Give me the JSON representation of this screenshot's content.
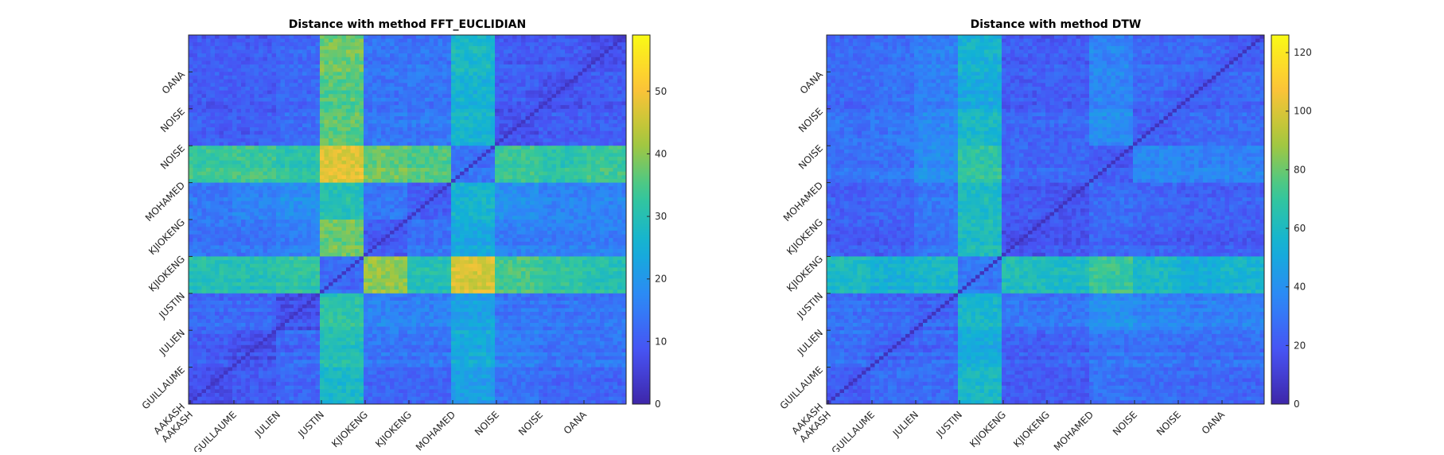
{
  "chart_data": [
    {
      "type": "heatmap",
      "title": "Distance with method FFT_EUCLIDIAN",
      "x_tick_labels": [
        "AAKASH",
        "GUILLAUME",
        "JULIEN",
        "JUSTIN",
        "KJIOKENG",
        "KJIOKENG",
        "MOHAMED",
        "NOISE",
        "NOISE",
        "OANA"
      ],
      "y_tick_labels": [
        "AAKASH",
        "GUILLAUME",
        "JULIEN",
        "JUSTIN",
        "KJIOKENG",
        "KJIOKENG",
        "MOHAMED",
        "NOISE",
        "NOISE",
        "OANA"
      ],
      "colorbar": {
        "min": 0,
        "max": 59,
        "ticks": [
          0,
          10,
          20,
          30,
          40,
          50
        ]
      },
      "colormap": "parula",
      "block_values": [
        [
          8,
          10,
          12,
          28,
          12,
          12,
          22,
          14,
          12,
          12
        ],
        [
          10,
          8,
          12,
          30,
          14,
          14,
          24,
          16,
          14,
          14
        ],
        [
          12,
          12,
          8,
          32,
          16,
          16,
          22,
          14,
          14,
          14
        ],
        [
          30,
          30,
          32,
          12,
          40,
          30,
          46,
          34,
          32,
          30
        ],
        [
          14,
          14,
          16,
          38,
          10,
          14,
          24,
          16,
          16,
          16
        ],
        [
          14,
          16,
          18,
          30,
          14,
          10,
          26,
          18,
          16,
          16
        ],
        [
          34,
          34,
          32,
          48,
          38,
          36,
          14,
          34,
          32,
          34
        ],
        [
          10,
          10,
          12,
          36,
          14,
          14,
          26,
          8,
          10,
          10
        ],
        [
          10,
          10,
          12,
          36,
          14,
          14,
          26,
          10,
          8,
          10
        ],
        [
          10,
          10,
          12,
          38,
          14,
          14,
          28,
          10,
          10,
          8
        ]
      ]
    },
    {
      "type": "heatmap",
      "title": "Distance with method DTW",
      "x_tick_labels": [
        "AAKASH",
        "GUILLAUME",
        "JULIEN",
        "JUSTIN",
        "KJIOKENG",
        "KJIOKENG",
        "MOHAMED",
        "NOISE",
        "NOISE",
        "OANA"
      ],
      "y_tick_labels": [
        "AAKASH",
        "GUILLAUME",
        "JULIEN",
        "JUSTIN",
        "KJIOKENG",
        "KJIOKENG",
        "MOHAMED",
        "NOISE",
        "NOISE",
        "OANA"
      ],
      "colorbar": {
        "min": 0,
        "max": 126,
        "ticks": [
          0,
          20,
          40,
          60,
          80,
          100,
          120
        ]
      },
      "colormap": "parula",
      "diagonal_value": 5,
      "block_values": [
        [
          22,
          28,
          28,
          60,
          22,
          22,
          30,
          28,
          26,
          26
        ],
        [
          28,
          24,
          26,
          52,
          22,
          24,
          30,
          30,
          28,
          28
        ],
        [
          28,
          26,
          24,
          58,
          30,
          30,
          40,
          36,
          34,
          34
        ],
        [
          60,
          54,
          58,
          30,
          62,
          60,
          70,
          58,
          52,
          56
        ],
        [
          22,
          22,
          30,
          62,
          18,
          20,
          26,
          24,
          22,
          22
        ],
        [
          22,
          24,
          30,
          60,
          20,
          18,
          26,
          24,
          22,
          22
        ],
        [
          30,
          30,
          40,
          70,
          26,
          26,
          22,
          38,
          36,
          36
        ],
        [
          28,
          30,
          36,
          58,
          24,
          24,
          38,
          22,
          26,
          26
        ],
        [
          26,
          28,
          34,
          52,
          22,
          22,
          36,
          26,
          22,
          26
        ],
        [
          26,
          28,
          34,
          56,
          22,
          22,
          36,
          26,
          26,
          22
        ]
      ]
    }
  ]
}
